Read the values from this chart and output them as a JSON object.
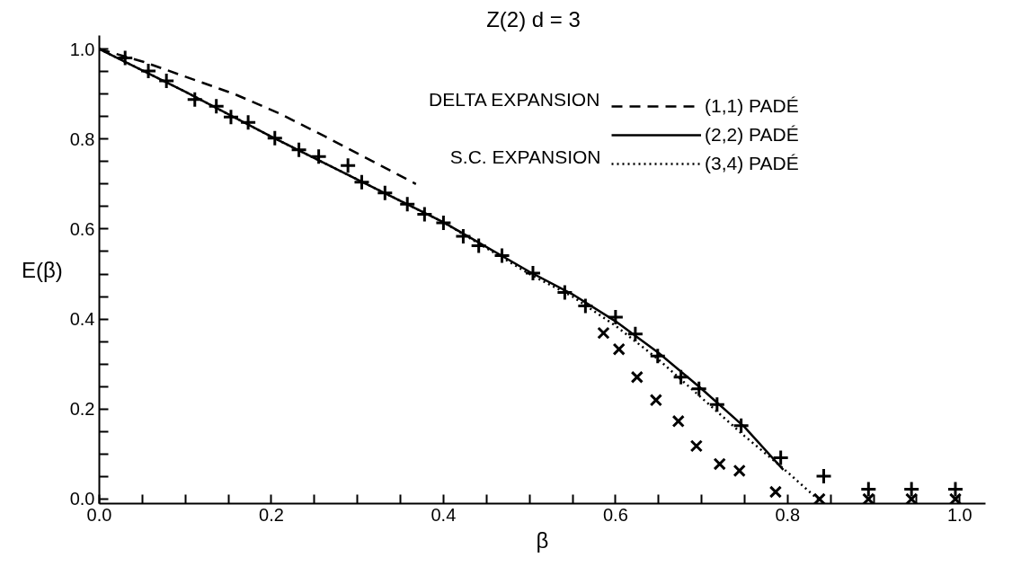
{
  "chart_data": {
    "type": "line",
    "title": "Z(2)    d = 3",
    "xlabel": "β",
    "ylabel": "E(β)",
    "annotations": [
      "DELTA EXPANSION",
      "S.C. EXPANSION"
    ],
    "xlim": [
      0,
      1.03
    ],
    "ylim": [
      -0.01,
      1.03
    ],
    "xticks": [
      {
        "value": 0,
        "label": "0.0"
      },
      {
        "value": 0.05,
        "label": null
      },
      {
        "value": 0.1,
        "label": null
      },
      {
        "value": 0.15,
        "label": null
      },
      {
        "value": 0.2,
        "label": "0.2"
      },
      {
        "value": 0.25,
        "label": null
      },
      {
        "value": 0.3,
        "label": null
      },
      {
        "value": 0.35,
        "label": null
      },
      {
        "value": 0.4,
        "label": "0.4"
      },
      {
        "value": 0.45,
        "label": null
      },
      {
        "value": 0.5,
        "label": null
      },
      {
        "value": 0.55,
        "label": null
      },
      {
        "value": 0.6,
        "label": "0.6"
      },
      {
        "value": 0.65,
        "label": null
      },
      {
        "value": 0.7,
        "label": null
      },
      {
        "value": 0.75,
        "label": null
      },
      {
        "value": 0.8,
        "label": "0.8"
      },
      {
        "value": 0.85,
        "label": null
      },
      {
        "value": 0.9,
        "label": null
      },
      {
        "value": 0.95,
        "label": null
      },
      {
        "value": 1.0,
        "label": "1.0"
      }
    ],
    "yticks": [
      {
        "value": 0,
        "label": "0.0"
      },
      {
        "value": 0.05,
        "label": null
      },
      {
        "value": 0.1,
        "label": null
      },
      {
        "value": 0.15,
        "label": null
      },
      {
        "value": 0.2,
        "label": "0.2"
      },
      {
        "value": 0.25,
        "label": null
      },
      {
        "value": 0.3,
        "label": null
      },
      {
        "value": 0.35,
        "label": null
      },
      {
        "value": 0.4,
        "label": "0.4"
      },
      {
        "value": 0.45,
        "label": null
      },
      {
        "value": 0.5,
        "label": null
      },
      {
        "value": 0.55,
        "label": null
      },
      {
        "value": 0.6,
        "label": "0.6"
      },
      {
        "value": 0.65,
        "label": null
      },
      {
        "value": 0.7,
        "label": null
      },
      {
        "value": 0.75,
        "label": null
      },
      {
        "value": 0.8,
        "label": "0.8"
      },
      {
        "value": 0.85,
        "label": null
      },
      {
        "value": 0.9,
        "label": null
      },
      {
        "value": 0.95,
        "label": null
      },
      {
        "value": 1.0,
        "label": "1.0"
      }
    ],
    "grid": false,
    "legend": "top right",
    "series": [
      {
        "name": "(1,1) PADÉ",
        "line_style": "dashed",
        "color": "#000000",
        "x": [
          0,
          0.052,
          0.157,
          0.209,
          0.262,
          0.368
        ],
        "values": [
          1,
          0.971,
          0.9,
          0.857,
          0.806,
          0.7
        ]
      },
      {
        "name": "(2,2) PADÉ",
        "line_style": "solid",
        "color": "#000000",
        "x": [
          0,
          0.1,
          0.2,
          0.3,
          0.4,
          0.5,
          0.55,
          0.6,
          0.65,
          0.7,
          0.75,
          0.795
        ],
        "values": [
          1,
          0.905,
          0.805,
          0.71,
          0.615,
          0.505,
          0.455,
          0.395,
          0.325,
          0.245,
          0.16,
          0.065
        ]
      },
      {
        "name": "(3,4) PADÉ",
        "line_style": "dotted",
        "color": "#000000",
        "x": [
          0,
          0.1,
          0.2,
          0.3,
          0.4,
          0.5,
          0.55,
          0.6,
          0.65,
          0.7,
          0.75,
          0.792,
          0.835
        ],
        "values": [
          1,
          0.905,
          0.805,
          0.71,
          0.615,
          0.5,
          0.45,
          0.385,
          0.31,
          0.225,
          0.14,
          0.073,
          0.0
        ]
      },
      {
        "type": "scatter",
        "marker": "cross",
        "color": "#000000",
        "x": [
          0.03,
          0.057,
          0.078,
          0.111,
          0.136,
          0.153,
          0.173,
          0.204,
          0.232,
          0.255,
          0.289,
          0.305,
          0.332,
          0.358,
          0.378,
          0.4,
          0.423,
          0.441,
          0.468,
          0.504,
          0.541,
          0.565,
          0.6,
          0.623,
          0.649,
          0.676,
          0.697,
          0.718,
          0.746,
          0.792,
          0.842,
          0.894,
          0.944,
          0.995
        ],
        "values": [
          0.98,
          0.951,
          0.929,
          0.888,
          0.873,
          0.849,
          0.837,
          0.802,
          0.776,
          0.761,
          0.741,
          0.704,
          0.68,
          0.655,
          0.633,
          0.614,
          0.584,
          0.563,
          0.541,
          0.502,
          0.459,
          0.429,
          0.404,
          0.367,
          0.318,
          0.271,
          0.245,
          0.21,
          0.163,
          0.092,
          0.051,
          0.022,
          0.022,
          0.022
        ]
      },
      {
        "type": "scatter",
        "marker": "x",
        "color": "#000000",
        "x": [
          0.586,
          0.604,
          0.625,
          0.647,
          0.673,
          0.694,
          0.721,
          0.744,
          0.786,
          0.837,
          0.894,
          0.944,
          0.995
        ],
        "values": [
          0.369,
          0.333,
          0.271,
          0.22,
          0.173,
          0.118,
          0.078,
          0.063,
          0.016,
          0.0,
          0.0,
          0.0,
          0.0
        ]
      }
    ]
  }
}
